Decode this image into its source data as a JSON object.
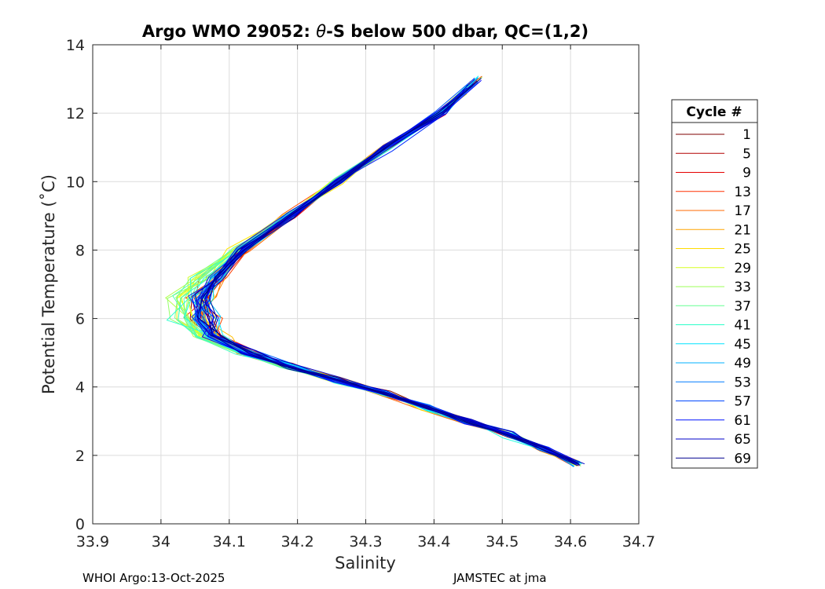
{
  "chart_data": {
    "type": "line",
    "title_prefix": "Argo WMO 29052: ",
    "title_theta": "θ",
    "title_suffix": "-S below 500 dbar,  QC=(1,2)",
    "xlabel": "Salinity",
    "ylabel": "Potential Temperature (˚C)",
    "xlim": [
      33.9,
      34.7
    ],
    "ylim": [
      0,
      14
    ],
    "xticks": [
      "33.9",
      "34",
      "34.1",
      "34.2",
      "34.3",
      "34.4",
      "34.5",
      "34.6",
      "34.7"
    ],
    "yticks": [
      "0",
      "2",
      "4",
      "6",
      "8",
      "10",
      "12",
      "14"
    ],
    "grid": true,
    "legend_position": "outside-right",
    "legend_title": "Cycle #",
    "legend_entries": [
      {
        "label": "1",
        "color": "#7f0000"
      },
      {
        "label": "5",
        "color": "#b20000"
      },
      {
        "label": "9",
        "color": "#e50000"
      },
      {
        "label": "13",
        "color": "#ff3000"
      },
      {
        "label": "17",
        "color": "#ff6a00"
      },
      {
        "label": "21",
        "color": "#ffa300"
      },
      {
        "label": "25",
        "color": "#ffdb00"
      },
      {
        "label": "29",
        "color": "#d7ff20"
      },
      {
        "label": "33",
        "color": "#9eff59"
      },
      {
        "label": "37",
        "color": "#66ff91"
      },
      {
        "label": "41",
        "color": "#2cffca"
      },
      {
        "label": "45",
        "color": "#00e4ff"
      },
      {
        "label": "49",
        "color": "#00b0ff"
      },
      {
        "label": "53",
        "color": "#007cff"
      },
      {
        "label": "57",
        "color": "#0048ff"
      },
      {
        "label": "61",
        "color": "#0014ff"
      },
      {
        "label": "65",
        "color": "#0000c8"
      },
      {
        "label": "69",
        "color": "#00008f"
      }
    ],
    "profile_shape": {
      "theta": [
        13.1,
        12.0,
        11.0,
        10.0,
        9.0,
        8.0,
        7.2,
        6.6,
        6.0,
        5.5,
        5.0,
        4.6,
        4.2,
        3.8,
        3.4,
        3.0,
        2.6,
        2.2,
        1.75
      ],
      "salinity": [
        34.47,
        34.41,
        34.33,
        34.26,
        34.19,
        34.12,
        34.08,
        34.06,
        34.06,
        34.08,
        34.13,
        34.19,
        34.26,
        34.33,
        34.39,
        34.45,
        34.51,
        34.56,
        34.61
      ]
    }
  },
  "footer": {
    "left": "WHOI Argo:13-Oct-2025",
    "right": "JAMSTEC at jma"
  }
}
